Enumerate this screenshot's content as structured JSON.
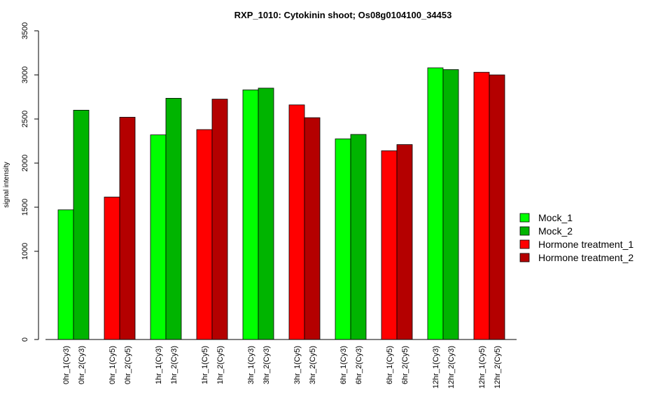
{
  "chart_data": {
    "type": "bar",
    "title": "RXP_1010: Cytokinin shoot; Os08g0104100_34453",
    "xlabel": "",
    "ylabel": "signal intensity",
    "y_ticks": [
      0,
      1000,
      1500,
      2000,
      2500,
      3000,
      3500
    ],
    "y_tick_labels": [
      "0",
      "1000",
      "1500",
      "2000",
      "2500",
      "3000",
      "3500"
    ],
    "ylim": [
      0,
      3500
    ],
    "grid": false,
    "legend_position": "right",
    "legend": [
      {
        "label": "Mock_1",
        "color": "#00FF00"
      },
      {
        "label": "Mock_2",
        "color": "#00B400"
      },
      {
        "label": "Hormone treatment_1",
        "color": "#FF0000"
      },
      {
        "label": "Hormone treatment_2",
        "color": "#B40000"
      }
    ],
    "bars": [
      {
        "label": "0hr_1(Cy3)",
        "value": 1470,
        "color": "#00FF00"
      },
      {
        "label": "0hr_2(Cy3)",
        "value": 2600,
        "color": "#00B400"
      },
      {
        "label": "0hr_1(Cy5)",
        "value": 1615,
        "color": "#FF0000"
      },
      {
        "label": "0hr_2(Cy5)",
        "value": 2520,
        "color": "#B40000"
      },
      {
        "label": "1hr_1(Cy3)",
        "value": 2320,
        "color": "#00FF00"
      },
      {
        "label": "1hr_2(Cy3)",
        "value": 2735,
        "color": "#00B400"
      },
      {
        "label": "1hr_1(Cy5)",
        "value": 2380,
        "color": "#FF0000"
      },
      {
        "label": "1hr_2(Cy5)",
        "value": 2725,
        "color": "#B40000"
      },
      {
        "label": "3hr_1(Cy3)",
        "value": 2830,
        "color": "#00FF00"
      },
      {
        "label": "3hr_2(Cy3)",
        "value": 2850,
        "color": "#00B400"
      },
      {
        "label": "3hr_1(Cy5)",
        "value": 2660,
        "color": "#FF0000"
      },
      {
        "label": "3hr_2(Cy5)",
        "value": 2515,
        "color": "#B40000"
      },
      {
        "label": "6hr_1(Cy3)",
        "value": 2275,
        "color": "#00FF00"
      },
      {
        "label": "6hr_2(Cy3)",
        "value": 2325,
        "color": "#00B400"
      },
      {
        "label": "6hr_1(Cy5)",
        "value": 2140,
        "color": "#FF0000"
      },
      {
        "label": "6hr_2(Cy5)",
        "value": 2210,
        "color": "#B40000"
      },
      {
        "label": "12hr_1(Cy3)",
        "value": 3080,
        "color": "#00FF00"
      },
      {
        "label": "12hr_2(Cy3)",
        "value": 3060,
        "color": "#00B400"
      },
      {
        "label": "12hr_1(Cy5)",
        "value": 3030,
        "color": "#FF0000"
      },
      {
        "label": "12hr_2(Cy5)",
        "value": 3000,
        "color": "#B40000"
      }
    ]
  }
}
